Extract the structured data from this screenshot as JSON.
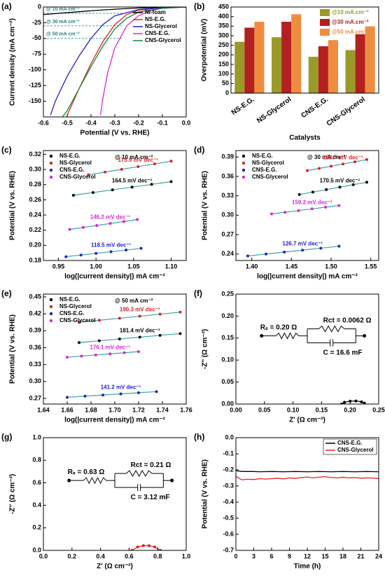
{
  "chart_data": [
    {
      "type": "line",
      "label": "(a)",
      "xlabel": "Potential (V vs. RHE)",
      "ylabel": "Current density (mA cm⁻²)",
      "xlim": [
        -0.6,
        0
      ],
      "xticks": [
        -0.6,
        -0.5,
        -0.4,
        -0.3,
        -0.2,
        -0.1,
        {
          "value": 0,
          "label": "0.0"
        }
      ],
      "ylim": [
        -175,
        0
      ],
      "yticks": [
        -150,
        -125,
        -100,
        -75,
        -50,
        -25,
        0
      ],
      "legend": "upper right",
      "reference_lines": [
        {
          "value": -10,
          "label": "@ 10 mA cm⁻²"
        },
        {
          "value": -30,
          "label": "@ 30 mA cm⁻²"
        },
        {
          "value": -50,
          "label": "@ 50 mA cm⁻²"
        }
      ],
      "series": [
        {
          "name": "Ni-foam",
          "color": "#000000",
          "x": [
            0,
            -0.1,
            -0.2,
            -0.3,
            -0.4,
            -0.5,
            -0.6
          ],
          "values": [
            0,
            -0.5,
            -1.5,
            -3.5,
            -6,
            -9,
            -12
          ]
        },
        {
          "name": "NS-E.G.",
          "color": "#e02020",
          "x": [
            0,
            -0.1,
            -0.2,
            -0.25,
            -0.3,
            -0.35,
            -0.4,
            -0.45,
            -0.5
          ],
          "values": [
            0,
            -1,
            -5,
            -12,
            -28,
            -55,
            -90,
            -130,
            -172
          ]
        },
        {
          "name": "NS-Glycerol",
          "color": "#2020d0",
          "x": [
            0,
            -0.1,
            -0.2,
            -0.3,
            -0.35,
            -0.4,
            -0.45,
            -0.5,
            -0.55,
            -0.57
          ],
          "values": [
            0,
            -1,
            -4,
            -14,
            -28,
            -50,
            -78,
            -110,
            -150,
            -172
          ]
        },
        {
          "name": "CNS-E.G.",
          "color": "#e020e0",
          "x": [
            0,
            -0.1,
            -0.15,
            -0.2,
            -0.25,
            -0.3,
            -0.33,
            -0.35,
            -0.36
          ],
          "values": [
            0,
            -2,
            -6,
            -14,
            -30,
            -65,
            -105,
            -145,
            -172
          ]
        },
        {
          "name": "CNS-Glycerol",
          "color": "#108a30",
          "x": [
            0,
            -0.1,
            -0.2,
            -0.25,
            -0.3,
            -0.35,
            -0.4,
            -0.45,
            -0.5,
            -0.52
          ],
          "values": [
            0,
            -2,
            -8,
            -18,
            -35,
            -62,
            -95,
            -130,
            -165,
            -175
          ]
        }
      ]
    },
    {
      "type": "bar",
      "label": "(b)",
      "xlabel": "Catalysts",
      "ylabel": "Overpotential (mV)",
      "categories": [
        "NS-E.G.",
        "NS-Glycerol",
        "CNS-E.G.",
        "CNS-Glycerol"
      ],
      "ylim": [
        0,
        450
      ],
      "yticks": [
        0,
        50,
        100,
        150,
        200,
        250,
        300,
        350,
        400,
        450
      ],
      "legend": "upper right",
      "series": [
        {
          "name": "@10 mA.cm⁻²",
          "color": "#9a9a28",
          "values": [
            268,
            292,
            190,
            225
          ]
        },
        {
          "name": "@30 mA.cm⁻²",
          "color": "#b22020",
          "values": [
            342,
            373,
            245,
            308
          ]
        },
        {
          "name": "@50 mA.cm⁻²",
          "color": "#f08c40",
          "values": [
            373,
            412,
            277,
            349
          ]
        }
      ]
    },
    {
      "type": "scatter",
      "label": "(c)",
      "xlabel": "log(|current density|) mA cm⁻²",
      "ylabel": "Potential (V vs. RHE)",
      "annotation": "@ 10 mA cm⁻²",
      "xlim": [
        0.93,
        1.12
      ],
      "xticks": [
        0.95,
        {
          "value": 1,
          "label": "1.00"
        },
        1.05,
        {
          "value": 1.1,
          "label": "1.10"
        }
      ],
      "ylim": [
        0.18,
        0.325
      ],
      "yticks": [
        0.18,
        {
          "value": 0.2,
          "label": "0.20"
        },
        0.22,
        0.24,
        0.26,
        0.28,
        {
          "value": 0.3,
          "label": "0.30"
        },
        0.32
      ],
      "legend": "upper left",
      "fit_color": "#3aa6a0",
      "series": [
        {
          "name": "NS-E.G.",
          "color": "#000000",
          "slope_label": "164.5 mV dec⁻¹",
          "x": [
            0.97,
            0.996,
            1.022,
            1.048,
            1.074,
            1.1
          ],
          "values": [
            0.266,
            0.2696,
            0.2732,
            0.2768,
            0.2804,
            0.284
          ]
        },
        {
          "name": "NS-Glycerol",
          "color": "#e02020",
          "slope_label": "175.9 mV dec⁻¹",
          "x": [
            0.99,
            1.012,
            1.034,
            1.056,
            1.078,
            1.1
          ],
          "values": [
            0.293,
            0.2966,
            0.3002,
            0.3038,
            0.3074,
            0.311
          ]
        },
        {
          "name": "CNS-E.G.",
          "color": "#2020d0",
          "slope_label": "118.5 mV dec⁻¹",
          "x": [
            0.96,
            0.98,
            1.0,
            1.02,
            1.04,
            1.06
          ],
          "values": [
            0.185,
            0.1872,
            0.1894,
            0.1916,
            0.1938,
            0.196
          ]
        },
        {
          "name": "CNS-Glycerol",
          "color": "#e020e0",
          "slope_label": "146.2 mV dec⁻¹",
          "x": [
            0.965,
            0.983,
            1.001,
            1.019,
            1.037,
            1.055
          ],
          "values": [
            0.221,
            0.2236,
            0.2262,
            0.2288,
            0.2314,
            0.234
          ]
        }
      ]
    },
    {
      "type": "scatter",
      "label": "(d)",
      "xlabel": "log(|current density|) mA cm⁻²",
      "ylabel": "Potential (V vs. RHE)",
      "annotation": "@ 30 mA cm⁻²",
      "xlim": [
        1.38,
        1.56
      ],
      "xticks": [
        {
          "value": 1.4,
          "label": "1.40"
        },
        1.45,
        {
          "value": 1.5,
          "label": "1.50"
        },
        1.55
      ],
      "ylim": [
        0.23,
        0.4
      ],
      "yticks": [
        0.24,
        0.27,
        {
          "value": 0.3,
          "label": "0.30"
        },
        0.33,
        0.36,
        0.39
      ],
      "legend": "upper left",
      "fit_color": "#3aa6a0",
      "series": [
        {
          "name": "NS-E.G.",
          "color": "#000000",
          "slope_label": "170.5 mV dec⁻¹",
          "x": [
            1.46,
            1.477,
            1.494,
            1.511,
            1.528,
            1.545
          ],
          "values": [
            0.332,
            0.3358,
            0.3396,
            0.3434,
            0.3472,
            0.351
          ]
        },
        {
          "name": "NS-Glycerol",
          "color": "#e02020",
          "slope_label": "183.7 mV dec⁻¹",
          "x": [
            1.47,
            1.485,
            1.5,
            1.515,
            1.53,
            1.545
          ],
          "values": [
            0.369,
            0.3724,
            0.3758,
            0.3792,
            0.3826,
            0.386
          ]
        },
        {
          "name": "CNS-E.G.",
          "color": "#2020d0",
          "slope_label": "126.7 mV dec⁻¹",
          "x": [
            1.395,
            1.418,
            1.441,
            1.464,
            1.487,
            1.51
          ],
          "values": [
            0.237,
            0.24,
            0.243,
            0.246,
            0.249,
            0.252
          ]
        },
        {
          "name": "CNS-Glycerol",
          "color": "#e020e0",
          "slope_label": "159.2 mV dec⁻¹",
          "x": [
            1.425,
            1.442,
            1.459,
            1.476,
            1.493,
            1.51
          ],
          "values": [
            0.302,
            0.3046,
            0.3072,
            0.3098,
            0.3124,
            0.315
          ]
        }
      ]
    },
    {
      "type": "scatter",
      "label": "(e)",
      "xlabel": "log(|current density|) mA cm⁻²",
      "ylabel": "Potential (V vs. RHE)",
      "annotation": "@ 50 mA cm⁻²",
      "xlim": [
        1.64,
        1.76
      ],
      "xticks": [
        1.64,
        1.66,
        1.68,
        {
          "value": 1.7,
          "label": "1.70"
        },
        1.72,
        1.74,
        1.76
      ],
      "ylim": [
        0.26,
        0.455
      ],
      "yticks": [
        0.27,
        {
          "value": 0.3,
          "label": "0.30"
        },
        0.33,
        0.36,
        0.39,
        0.42,
        0.45
      ],
      "legend": "upper left",
      "fit_color": "#3aa6a0",
      "series": [
        {
          "name": "NS-E.G.",
          "color": "#000000",
          "slope_label": "181.4 mV dec⁻¹",
          "x": [
            1.67,
            1.687,
            1.704,
            1.721,
            1.738,
            1.755
          ],
          "values": [
            0.369,
            0.3722,
            0.3754,
            0.3786,
            0.3818,
            0.385
          ]
        },
        {
          "name": "NS-Glycerol",
          "color": "#e02020",
          "slope_label": "190.3 mV dec⁻¹",
          "x": [
            1.67,
            1.687,
            1.704,
            1.721,
            1.738,
            1.755
          ],
          "values": [
            0.405,
            0.4086,
            0.4122,
            0.4158,
            0.4194,
            0.423
          ]
        },
        {
          "name": "CNS-E.G.",
          "color": "#2020d0",
          "slope_label": "141.2 mV dec⁻¹",
          "x": [
            1.66,
            1.675,
            1.69,
            1.705,
            1.72,
            1.735
          ],
          "values": [
            0.272,
            0.274,
            0.276,
            0.278,
            0.28,
            0.282
          ]
        },
        {
          "name": "CNS-Glycerol",
          "color": "#e020e0",
          "slope_label": "176.1 mV dec⁻¹",
          "x": [
            1.66,
            1.672,
            1.684,
            1.696,
            1.708,
            1.72
          ],
          "values": [
            0.343,
            0.345,
            0.347,
            0.349,
            0.351,
            0.353
          ]
        }
      ]
    },
    {
      "type": "scatter",
      "label": "(f)",
      "xlabel": "Z' (Ω cm⁻²)",
      "ylabel": "-Z'' (Ω cm⁻²)",
      "xlim": [
        0,
        0.25
      ],
      "xticks": [
        {
          "value": 0,
          "label": "0.00"
        },
        0.05,
        {
          "value": 0.1,
          "label": "0.10"
        },
        0.15,
        {
          "value": 0.2,
          "label": "0.20"
        },
        0.25
      ],
      "ylim": [
        0,
        0.25
      ],
      "yticks": [
        {
          "value": 0,
          "label": "0.00"
        },
        0.05,
        {
          "value": 0.1,
          "label": "0.10"
        },
        0.15,
        {
          "value": 0.2,
          "label": "0.20"
        },
        0.25
      ],
      "circuit": [
        "Rₛ = 0.20 Ω",
        "Rct = 0.0062 Ω",
        "C = 16.6 mF"
      ],
      "series": [
        {
          "color": "#000000",
          "x": [
            0.185,
            0.19,
            0.2,
            0.21,
            0.22,
            0.225
          ],
          "values": [
            0,
            0.004,
            0.0065,
            0.007,
            0.005,
            0.002
          ]
        }
      ]
    },
    {
      "type": "scatter",
      "label": "(g)",
      "xlabel": "Z' (Ω cm⁻²)",
      "ylabel": "-Z'' (Ω cm⁻²)",
      "xlim": [
        0,
        1
      ],
      "xticks": [
        {
          "value": 0,
          "label": "0.0"
        },
        0.2,
        0.4,
        0.6,
        0.8,
        {
          "value": 1,
          "label": "1.0"
        }
      ],
      "ylim": [
        0,
        1
      ],
      "yticks": [
        {
          "value": 0,
          "label": "0.0"
        },
        0.2,
        0.4,
        0.6,
        0.8,
        {
          "value": 1,
          "label": "1.0"
        }
      ],
      "circuit": [
        "Rₛ = 0.63 Ω",
        "Rct = 0.21 Ω",
        "C = 3.12 mF"
      ],
      "series": [
        {
          "color": "#e02020",
          "x": [
            0.62,
            0.66,
            0.7,
            0.74,
            0.78,
            0.82
          ],
          "values": [
            0,
            0.03,
            0.042,
            0.042,
            0.03,
            0
          ]
        }
      ]
    },
    {
      "type": "line",
      "label": "(h)",
      "xlabel": "Time (h)",
      "ylabel": "Potential (V vs. RHE)",
      "xlim": [
        0,
        24
      ],
      "xticks": [
        0,
        3,
        6,
        9,
        12,
        15,
        18,
        21,
        24
      ],
      "ylim": [
        -0.7,
        0
      ],
      "yticks": [
        -0.7,
        -0.6,
        -0.5,
        -0.4,
        -0.3,
        -0.2,
        -0.1,
        {
          "value": 0,
          "label": "0.0"
        }
      ],
      "legend": "upper right",
      "series": [
        {
          "name": "CNS-E.G.",
          "color": "#000000",
          "x": [
            0,
            1,
            2,
            3,
            4,
            5,
            6,
            7,
            8,
            9,
            10,
            11,
            12,
            13,
            14,
            15,
            16,
            17,
            18,
            19,
            20,
            21,
            22,
            23,
            24
          ],
          "values": [
            -0.205,
            -0.21,
            -0.21,
            -0.21,
            -0.212,
            -0.211,
            -0.21,
            -0.211,
            -0.212,
            -0.211,
            -0.21,
            -0.211,
            -0.212,
            -0.211,
            -0.21,
            -0.211,
            -0.212,
            -0.211,
            -0.21,
            -0.211,
            -0.212,
            -0.211,
            -0.21,
            -0.211,
            -0.212
          ]
        },
        {
          "name": "CNS-Glycerol",
          "color": "#e02020",
          "x": [
            0,
            1,
            2,
            3,
            4,
            5,
            6,
            7,
            8,
            9,
            10,
            11,
            12,
            13,
            14,
            15,
            16,
            17,
            18,
            19,
            20,
            21,
            22,
            23,
            24
          ],
          "values": [
            -0.24,
            -0.262,
            -0.258,
            -0.26,
            -0.255,
            -0.257,
            -0.255,
            -0.252,
            -0.256,
            -0.25,
            -0.253,
            -0.248,
            -0.244,
            -0.25,
            -0.245,
            -0.242,
            -0.248,
            -0.25,
            -0.246,
            -0.25,
            -0.248,
            -0.252,
            -0.25,
            -0.251,
            -0.254
          ]
        }
      ]
    }
  ]
}
